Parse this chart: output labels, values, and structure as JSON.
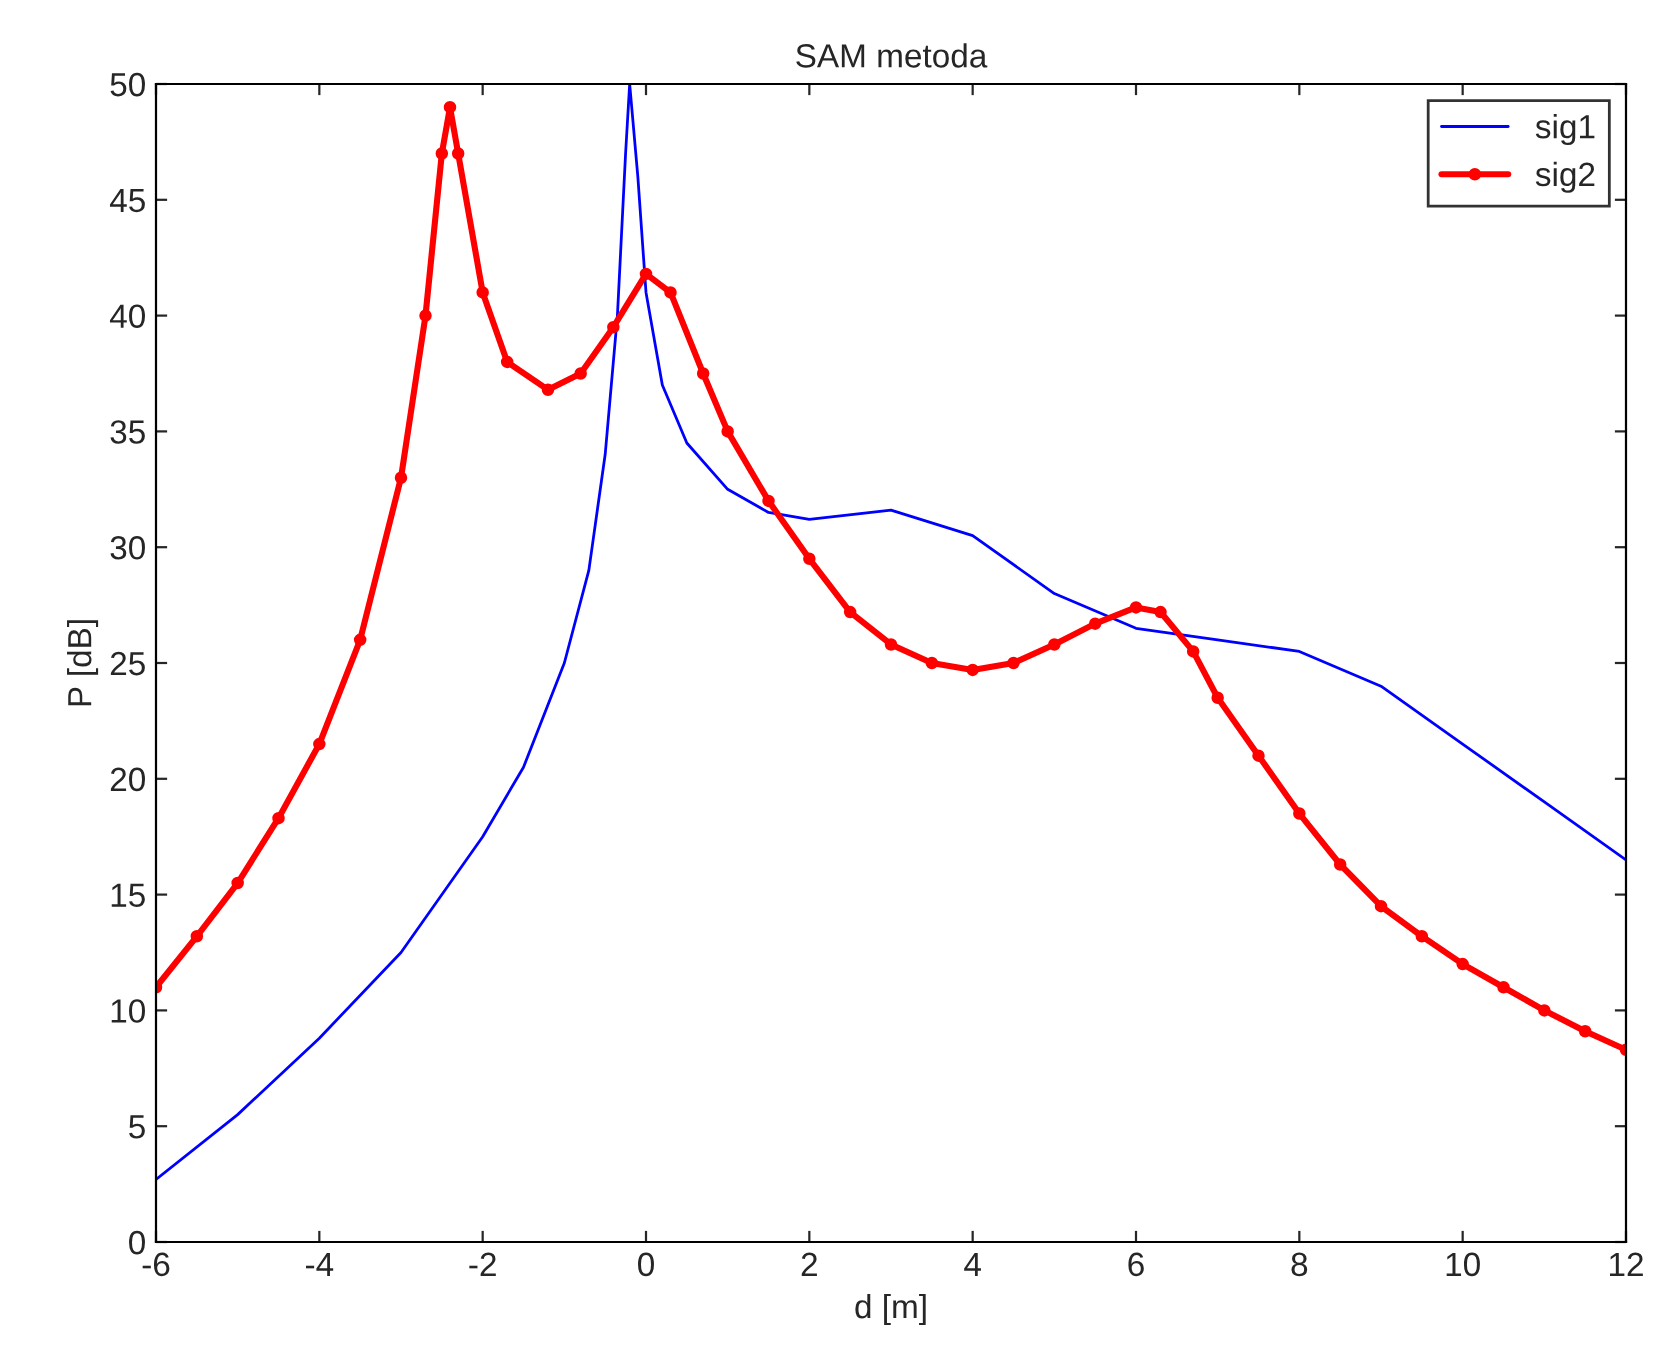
{
  "chart_data": {
    "type": "line",
    "title": "SAM metoda",
    "xlabel": "d [m]",
    "ylabel": "P [dB]",
    "xlim": [
      -6,
      12
    ],
    "xticks": [
      -6,
      -4,
      -2,
      0,
      2,
      4,
      6,
      8,
      10,
      12
    ],
    "ylim": [
      0,
      50
    ],
    "yticks": [
      0,
      5,
      10,
      15,
      20,
      25,
      30,
      35,
      40,
      45,
      50
    ],
    "grid": false,
    "legend": "top right",
    "series": [
      {
        "name": "sig1",
        "color": "#0000ff",
        "marker": "none",
        "x": [
          -6,
          -5,
          -4,
          -3,
          -2,
          -1.5,
          -1,
          -0.7,
          -0.5,
          -0.35,
          -0.25,
          -0.2,
          -0.1,
          0,
          0.2,
          0.5,
          1,
          1.5,
          2,
          3,
          4,
          5,
          6,
          7,
          8,
          9,
          10,
          11,
          12
        ],
        "values": [
          2.7,
          5.5,
          8.8,
          12.5,
          17.5,
          20.5,
          25,
          29,
          34,
          40,
          47,
          50,
          46,
          41,
          37,
          34.5,
          32.5,
          31.5,
          31.2,
          31.6,
          30.5,
          28,
          26.5,
          26,
          25.5,
          24,
          21.5,
          19,
          16.5
        ]
      },
      {
        "name": "sig2",
        "color": "#ff0000",
        "marker": "circle",
        "x": [
          -6,
          -5.5,
          -5,
          -4.5,
          -4,
          -3.5,
          -3,
          -2.7,
          -2.5,
          -2.4,
          -2.3,
          -2,
          -1.7,
          -1.2,
          -0.8,
          -0.4,
          0,
          0.3,
          0.7,
          1,
          1.5,
          2,
          2.5,
          3,
          3.5,
          4,
          4.5,
          5,
          5.5,
          6,
          6.3,
          6.7,
          7,
          7.5,
          8,
          8.5,
          9,
          9.5,
          10,
          10.5,
          11,
          11.5,
          12
        ],
        "values": [
          11,
          13.2,
          15.5,
          18.3,
          21.5,
          26,
          33,
          40,
          47,
          49,
          47,
          41,
          38,
          36.8,
          37.5,
          39.5,
          41.8,
          41,
          37.5,
          35,
          32,
          29.5,
          27.2,
          25.8,
          25,
          24.7,
          25,
          25.8,
          26.7,
          27.4,
          27.2,
          25.5,
          23.5,
          21,
          18.5,
          16.3,
          14.5,
          13.2,
          12,
          11,
          10,
          9.1,
          8.3
        ]
      }
    ]
  }
}
